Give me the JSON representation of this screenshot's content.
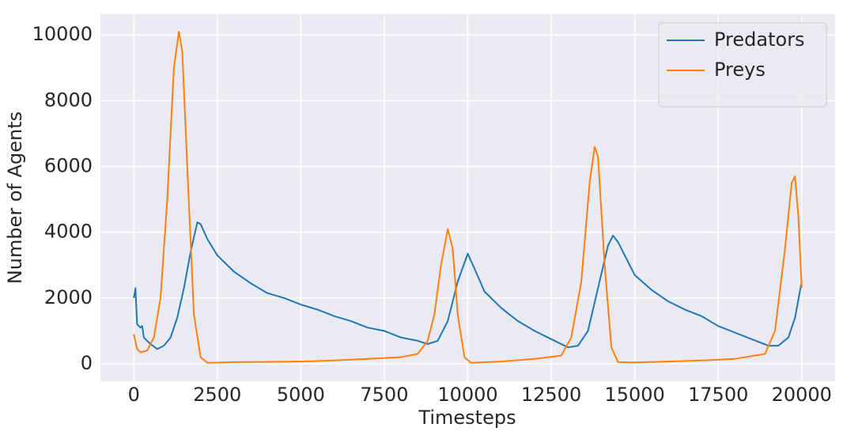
{
  "chart_data": {
    "type": "line",
    "xlabel": "Timesteps",
    "ylabel": "Number of Agents",
    "xlim": [
      -1000,
      21000
    ],
    "ylim": [
      -530,
      10630
    ],
    "xticks": [
      0,
      2500,
      5000,
      7500,
      10000,
      12500,
      15000,
      17500,
      20000
    ],
    "yticks": [
      0,
      2000,
      4000,
      6000,
      8000,
      10000
    ],
    "grid": true,
    "legend": "upper right",
    "series": [
      {
        "name": "Predators",
        "color": "#1f77b4",
        "x": [
          0,
          50,
          100,
          200,
          250,
          300,
          400,
          500,
          700,
          900,
          1100,
          1300,
          1500,
          1700,
          1900,
          2000,
          2200,
          2500,
          3000,
          3500,
          4000,
          4500,
          5000,
          5500,
          6000,
          6500,
          7000,
          7500,
          8000,
          8500,
          8800,
          9100,
          9400,
          9700,
          10000,
          10200,
          10500,
          11000,
          11500,
          12000,
          12500,
          13000,
          13300,
          13600,
          13900,
          14200,
          14350,
          14500,
          15000,
          15500,
          16000,
          16500,
          17000,
          17500,
          18000,
          18500,
          19000,
          19300,
          19600,
          19800,
          20000
        ],
        "values": [
          2000,
          2300,
          1200,
          1100,
          1150,
          800,
          700,
          600,
          450,
          550,
          800,
          1400,
          2300,
          3400,
          4300,
          4250,
          3800,
          3300,
          2800,
          2450,
          2150,
          2000,
          1800,
          1650,
          1450,
          1300,
          1100,
          1000,
          800,
          700,
          600,
          700,
          1300,
          2500,
          3350,
          2900,
          2200,
          1700,
          1300,
          1000,
          750,
          500,
          550,
          1000,
          2300,
          3600,
          3900,
          3700,
          2700,
          2250,
          1900,
          1650,
          1450,
          1150,
          950,
          750,
          550,
          550,
          800,
          1400,
          2500
        ]
      },
      {
        "name": "Preys",
        "color": "#ff7f0e",
        "x": [
          0,
          100,
          200,
          400,
          600,
          800,
          1000,
          1200,
          1350,
          1450,
          1600,
          1800,
          2000,
          2200,
          3000,
          4000,
          5000,
          6000,
          7000,
          8000,
          8500,
          8800,
          9000,
          9200,
          9400,
          9550,
          9700,
          9900,
          10100,
          11000,
          12000,
          12800,
          13100,
          13400,
          13650,
          13800,
          13900,
          14100,
          14300,
          14500,
          15000,
          16000,
          17000,
          18000,
          18900,
          19200,
          19500,
          19700,
          19800,
          19900,
          20000
        ],
        "values": [
          900,
          450,
          350,
          400,
          800,
          2000,
          5000,
          9000,
          10100,
          9500,
          6000,
          1500,
          200,
          30,
          50,
          60,
          70,
          100,
          150,
          200,
          300,
          700,
          1500,
          3000,
          4100,
          3500,
          1500,
          200,
          30,
          70,
          150,
          250,
          800,
          2500,
          5500,
          6600,
          6300,
          3000,
          500,
          50,
          40,
          70,
          100,
          150,
          300,
          1000,
          3500,
          5500,
          5700,
          4500,
          2300
        ]
      }
    ]
  }
}
